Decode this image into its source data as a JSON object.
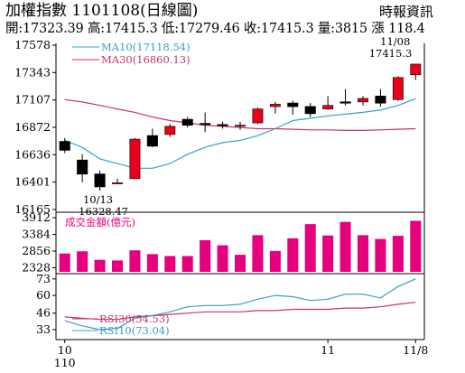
{
  "header": {
    "title": "加權指數 1101108(日線圖)",
    "source": "時報資訊",
    "info": "開:17323.39 高:17415.3 低:17279.46 收:17415.3 量:3815 漲 118.4"
  },
  "chart_data": [
    {
      "type": "candlestick",
      "yticks": [
        16165,
        16401,
        16636,
        16872,
        17107,
        17343,
        17578
      ],
      "ylim": [
        16165,
        17578
      ],
      "candles": [
        {
          "o": 16750,
          "h": 16780,
          "l": 16650,
          "c": 16675
        },
        {
          "o": 16590,
          "h": 16640,
          "l": 16400,
          "c": 16470
        },
        {
          "o": 16470,
          "h": 16500,
          "l": 16328.47,
          "c": 16360
        },
        {
          "o": 16395,
          "h": 16430,
          "l": 16390,
          "c": 16395
        },
        {
          "o": 16430,
          "h": 16780,
          "l": 16430,
          "c": 16770
        },
        {
          "o": 16800,
          "h": 16860,
          "l": 16700,
          "c": 16710
        },
        {
          "o": 16810,
          "h": 16900,
          "l": 16790,
          "c": 16880
        },
        {
          "o": 16940,
          "h": 16960,
          "l": 16870,
          "c": 16890
        },
        {
          "o": 16905,
          "h": 17000,
          "l": 16830,
          "c": 16895
        },
        {
          "o": 16895,
          "h": 16920,
          "l": 16860,
          "c": 16890
        },
        {
          "o": 16880,
          "h": 16920,
          "l": 16850,
          "c": 16890
        },
        {
          "o": 16910,
          "h": 17040,
          "l": 16900,
          "c": 17030
        },
        {
          "o": 17050,
          "h": 17090,
          "l": 16990,
          "c": 17070
        },
        {
          "o": 17080,
          "h": 17100,
          "l": 16980,
          "c": 17050
        },
        {
          "o": 17050,
          "h": 17080,
          "l": 16960,
          "c": 16990
        },
        {
          "o": 17030,
          "h": 17140,
          "l": 17020,
          "c": 17060
        },
        {
          "o": 17090,
          "h": 17200,
          "l": 17060,
          "c": 17080
        },
        {
          "o": 17090,
          "h": 17140,
          "l": 17060,
          "c": 17120
        },
        {
          "o": 17140,
          "h": 17200,
          "l": 17050,
          "c": 17080
        },
        {
          "o": 17110,
          "h": 17310,
          "l": 17100,
          "c": 17300
        },
        {
          "o": 17323.39,
          "h": 17415.3,
          "l": 17279.46,
          "c": 17415.3
        }
      ],
      "ma10": {
        "label": "MA10(17118.54)",
        "color": "#3a9ec9",
        "values": [
          16760,
          16700,
          16600,
          16560,
          16520,
          16520,
          16560,
          16640,
          16700,
          16740,
          16760,
          16800,
          16860,
          16930,
          16950,
          16970,
          16985,
          17000,
          17020,
          17060,
          17118.54
        ]
      },
      "ma30": {
        "label": "MA30(16860.13)",
        "color": "#cc3366",
        "values": [
          17110,
          17090,
          17060,
          17030,
          17000,
          16960,
          16930,
          16910,
          16890,
          16880,
          16870,
          16860,
          16860,
          16855,
          16850,
          16850,
          16845,
          16845,
          16850,
          16855,
          16860.13
        ]
      },
      "annotations": {
        "low_date": "10/13",
        "low_value": "16328.47",
        "high_date": "11/08",
        "high_value": "17415.3"
      }
    },
    {
      "type": "bar",
      "title": "成交金額(億元)",
      "yticks": [
        2328,
        2856,
        3384,
        3912
      ],
      "ylim": [
        2200,
        4000
      ],
      "values": [
        2780,
        2850,
        2580,
        2560,
        2880,
        2760,
        2700,
        2700,
        3200,
        3040,
        2740,
        3360,
        2860,
        3260,
        3710,
        3350,
        3780,
        3360,
        3240,
        3340,
        3815
      ]
    },
    {
      "type": "line",
      "yticks": [
        33,
        46,
        60,
        73
      ],
      "ylim": [
        28,
        75
      ],
      "rsi30": {
        "label": "RSI30(54.53)",
        "color": "#cc3366",
        "values": [
          43,
          42,
          41,
          41,
          43,
          44,
          45,
          46,
          47,
          47,
          47,
          48,
          48,
          49,
          49,
          49,
          50,
          50,
          51,
          53,
          54.53
        ]
      },
      "rsi10": {
        "label": "RSI10(73.04)",
        "color": "#3a9ec9",
        "values": [
          40,
          36,
          33,
          34,
          42,
          44,
          47,
          51,
          52,
          52,
          53,
          57,
          60,
          59,
          56,
          57,
          61,
          61,
          58,
          67,
          73.04
        ]
      }
    }
  ],
  "xaxis": {
    "ticks": [
      {
        "index": 0,
        "label": "10"
      },
      {
        "index": 15,
        "label": "11"
      },
      {
        "index": 20,
        "label": "11/8"
      }
    ],
    "year_label": "110"
  },
  "colors": {
    "up": "#e8001c",
    "down": "#000000",
    "volume": "#e6007e"
  }
}
